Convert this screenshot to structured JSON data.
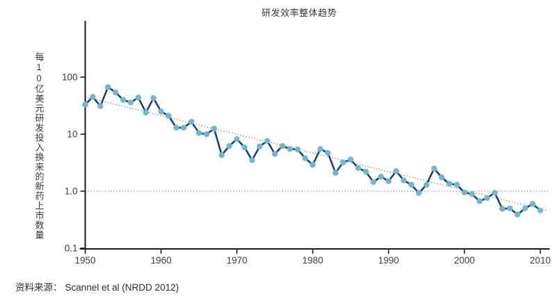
{
  "chart_data": {
    "type": "line",
    "title": "研发效率整体趋势",
    "ylabel": "每10亿美元研发投入换来的新药上市数量",
    "xlabel": "",
    "yscale": "log",
    "ylim": [
      0.1,
      1000
    ],
    "xlim": [
      1950,
      2011
    ],
    "grid": false,
    "legend": "none",
    "y_ticks": [
      {
        "value": 100,
        "label": "100"
      },
      {
        "value": 10,
        "label": "10"
      },
      {
        "value": 1,
        "label": "1.0"
      },
      {
        "value": 0.1,
        "label": "0.1"
      }
    ],
    "x_ticks": [
      1950,
      1960,
      1970,
      1980,
      1990,
      2000,
      2010
    ],
    "series": [
      {
        "name": "每10亿美元研发投入换来的新药上市数量",
        "x": [
          1950,
          1951,
          1952,
          1953,
          1954,
          1955,
          1956,
          1957,
          1958,
          1959,
          1960,
          1961,
          1962,
          1963,
          1964,
          1965,
          1966,
          1967,
          1968,
          1969,
          1970,
          1971,
          1972,
          1973,
          1974,
          1975,
          1976,
          1977,
          1978,
          1979,
          1980,
          1981,
          1982,
          1983,
          1984,
          1985,
          1986,
          1987,
          1988,
          1989,
          1990,
          1991,
          1992,
          1993,
          1994,
          1995,
          1996,
          1997,
          1998,
          1999,
          2000,
          2001,
          2002,
          2003,
          2004,
          2005,
          2006,
          2007,
          2008,
          2009,
          2010
        ],
        "y": [
          33,
          45,
          31,
          67,
          54,
          40,
          36,
          44,
          24,
          43,
          25,
          21,
          13,
          13,
          16.5,
          10.5,
          10,
          12.5,
          4.3,
          6.2,
          8.2,
          5.9,
          3.5,
          6.1,
          7.6,
          4.5,
          6.2,
          5.5,
          5.4,
          3.8,
          2.9,
          5.5,
          4.7,
          2.1,
          3.2,
          3.6,
          2.55,
          2.2,
          1.45,
          1.8,
          1.5,
          2.25,
          1.55,
          1.3,
          0.93,
          1.3,
          2.5,
          1.75,
          1.35,
          1.3,
          0.95,
          0.89,
          0.67,
          0.76,
          0.94,
          0.49,
          0.5,
          0.39,
          0.5,
          0.6,
          0.46
        ]
      }
    ],
    "trend_line": {
      "x1": 1950,
      "v1": 45,
      "x2": 2010.8,
      "v2": 0.46,
      "style": "dotted"
    },
    "reference_line": {
      "value": 1.0,
      "style": "dotted"
    },
    "colors": {
      "line": "#16437E",
      "marker": "#72B7CD",
      "trend": "#8c8c8c",
      "reference": "#9a9a9a",
      "axis": "#1a1a1a",
      "tick_text": "#3d3d3d"
    }
  },
  "source": {
    "label": "资料来源：",
    "citation": "Scannel et al (NRDD 2012)"
  }
}
